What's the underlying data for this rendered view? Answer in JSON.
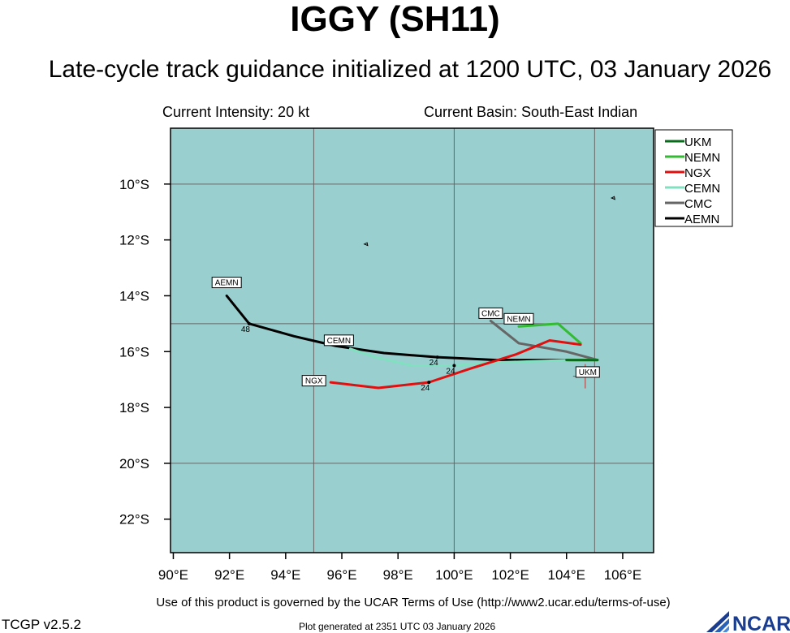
{
  "header": {
    "title": "IGGY (SH11)",
    "subtitle": "Late-cycle track guidance initialized at 1200 UTC, 03 January 2026",
    "intensity": "Current Intensity: 20 kt",
    "basin": "Current Basin: South-East Indian"
  },
  "footer": {
    "terms": "Use of this product is governed by the UCAR Terms of Use (http://www2.ucar.edu/terms-of-use)",
    "version": "TCGP v2.5.2",
    "generated": "Plot generated at 2351 UTC   03 January 2026",
    "logo_text": "NCAR"
  },
  "chart_data": {
    "type": "map-track",
    "xlim": [
      89.9,
      107.1
    ],
    "ylim": [
      -23.2,
      -8.0
    ],
    "x_ticks": [
      90,
      92,
      94,
      96,
      98,
      100,
      102,
      104,
      106
    ],
    "x_tick_labels": [
      "90°E",
      "92°E",
      "94°E",
      "96°E",
      "98°E",
      "100°E",
      "102°E",
      "104°E",
      "106°E"
    ],
    "y_ticks": [
      -10,
      -12,
      -14,
      -16,
      -18,
      -20,
      -22
    ],
    "y_tick_labels": [
      "10°S",
      "12°S",
      "14°S",
      "16°S",
      "18°S",
      "20°S",
      "22°S"
    ],
    "grid": {
      "lons": [
        95,
        100,
        105
      ],
      "lats": [
        -10,
        -15,
        -20
      ]
    },
    "colors": {
      "ocean": "#99cfcf",
      "grid": "#666666"
    },
    "current_position": [
      105.1,
      -16.3
    ],
    "legend_position": "top-right",
    "series": [
      {
        "name": "UKM",
        "color": "#0b6b1c",
        "points": [
          [
            105.1,
            -16.3
          ],
          [
            104.0,
            -16.3
          ]
        ],
        "label": "UKM",
        "label_at": [
          105.1,
          -16.6
        ]
      },
      {
        "name": "NEMN",
        "color": "#33bb33",
        "points": [
          [
            104.5,
            -15.7
          ],
          [
            103.7,
            -15.0
          ],
          [
            102.3,
            -15.1
          ]
        ],
        "label": "NEMN",
        "label_at": [
          102.3,
          -15.1
        ]
      },
      {
        "name": "NGX",
        "color": "#e01010",
        "points": [
          [
            104.5,
            -15.75
          ],
          [
            103.4,
            -15.6
          ],
          [
            102.2,
            -16.1
          ],
          [
            100.6,
            -16.6
          ],
          [
            99.1,
            -17.1
          ],
          [
            97.3,
            -17.3
          ],
          [
            95.6,
            -17.1
          ]
        ],
        "label": "NGX",
        "label_at": [
          95.6,
          -17.1
        ],
        "tau": [
          {
            "value": "24",
            "at": [
              99.1,
              -17.1
            ]
          }
        ]
      },
      {
        "name": "CEMN",
        "color": "#80e0c0",
        "points": [
          [
            105.1,
            -16.3
          ],
          [
            104.2,
            -16.3
          ],
          [
            102.8,
            -16.35
          ],
          [
            101.2,
            -16.4
          ],
          [
            100.0,
            -16.5
          ],
          [
            98.5,
            -16.5
          ],
          [
            97.2,
            -16.2
          ],
          [
            96.3,
            -15.9
          ]
        ],
        "label": "CEMN",
        "label_at": [
          96.3,
          -15.9
        ],
        "tau": [
          {
            "value": "24",
            "at": [
              100.0,
              -16.5
            ]
          }
        ]
      },
      {
        "name": "CMC",
        "color": "#666666",
        "points": [
          [
            105.1,
            -16.3
          ],
          [
            104.0,
            -16.0
          ],
          [
            102.3,
            -15.7
          ],
          [
            101.3,
            -14.9
          ]
        ],
        "label": "CMC",
        "label_at": [
          101.3,
          -14.9
        ]
      },
      {
        "name": "AEMN",
        "color": "#000000",
        "points": [
          [
            105.1,
            -16.3
          ],
          [
            103.3,
            -16.3
          ],
          [
            101.5,
            -16.3
          ],
          [
            99.4,
            -16.2
          ],
          [
            97.5,
            -16.05
          ],
          [
            95.8,
            -15.8
          ],
          [
            94.3,
            -15.45
          ],
          [
            92.7,
            -15.0
          ],
          [
            91.9,
            -14.0
          ]
        ],
        "label": "AEMN",
        "label_at": [
          91.9,
          -13.8
        ],
        "tau": [
          {
            "value": "24",
            "at": [
              99.4,
              -16.2
            ]
          },
          {
            "value": "48",
            "at": [
              92.7,
              -15.0
            ]
          }
        ]
      }
    ],
    "islands": [
      {
        "name": "",
        "points": [
          [
            105.6,
            -10.5
          ],
          [
            105.7,
            -10.45
          ],
          [
            105.72,
            -10.55
          ],
          [
            105.6,
            -10.5
          ]
        ]
      },
      {
        "name": "",
        "points": [
          [
            96.8,
            -12.15
          ],
          [
            96.9,
            -12.1
          ],
          [
            96.92,
            -12.2
          ],
          [
            96.8,
            -12.15
          ]
        ]
      }
    ]
  }
}
